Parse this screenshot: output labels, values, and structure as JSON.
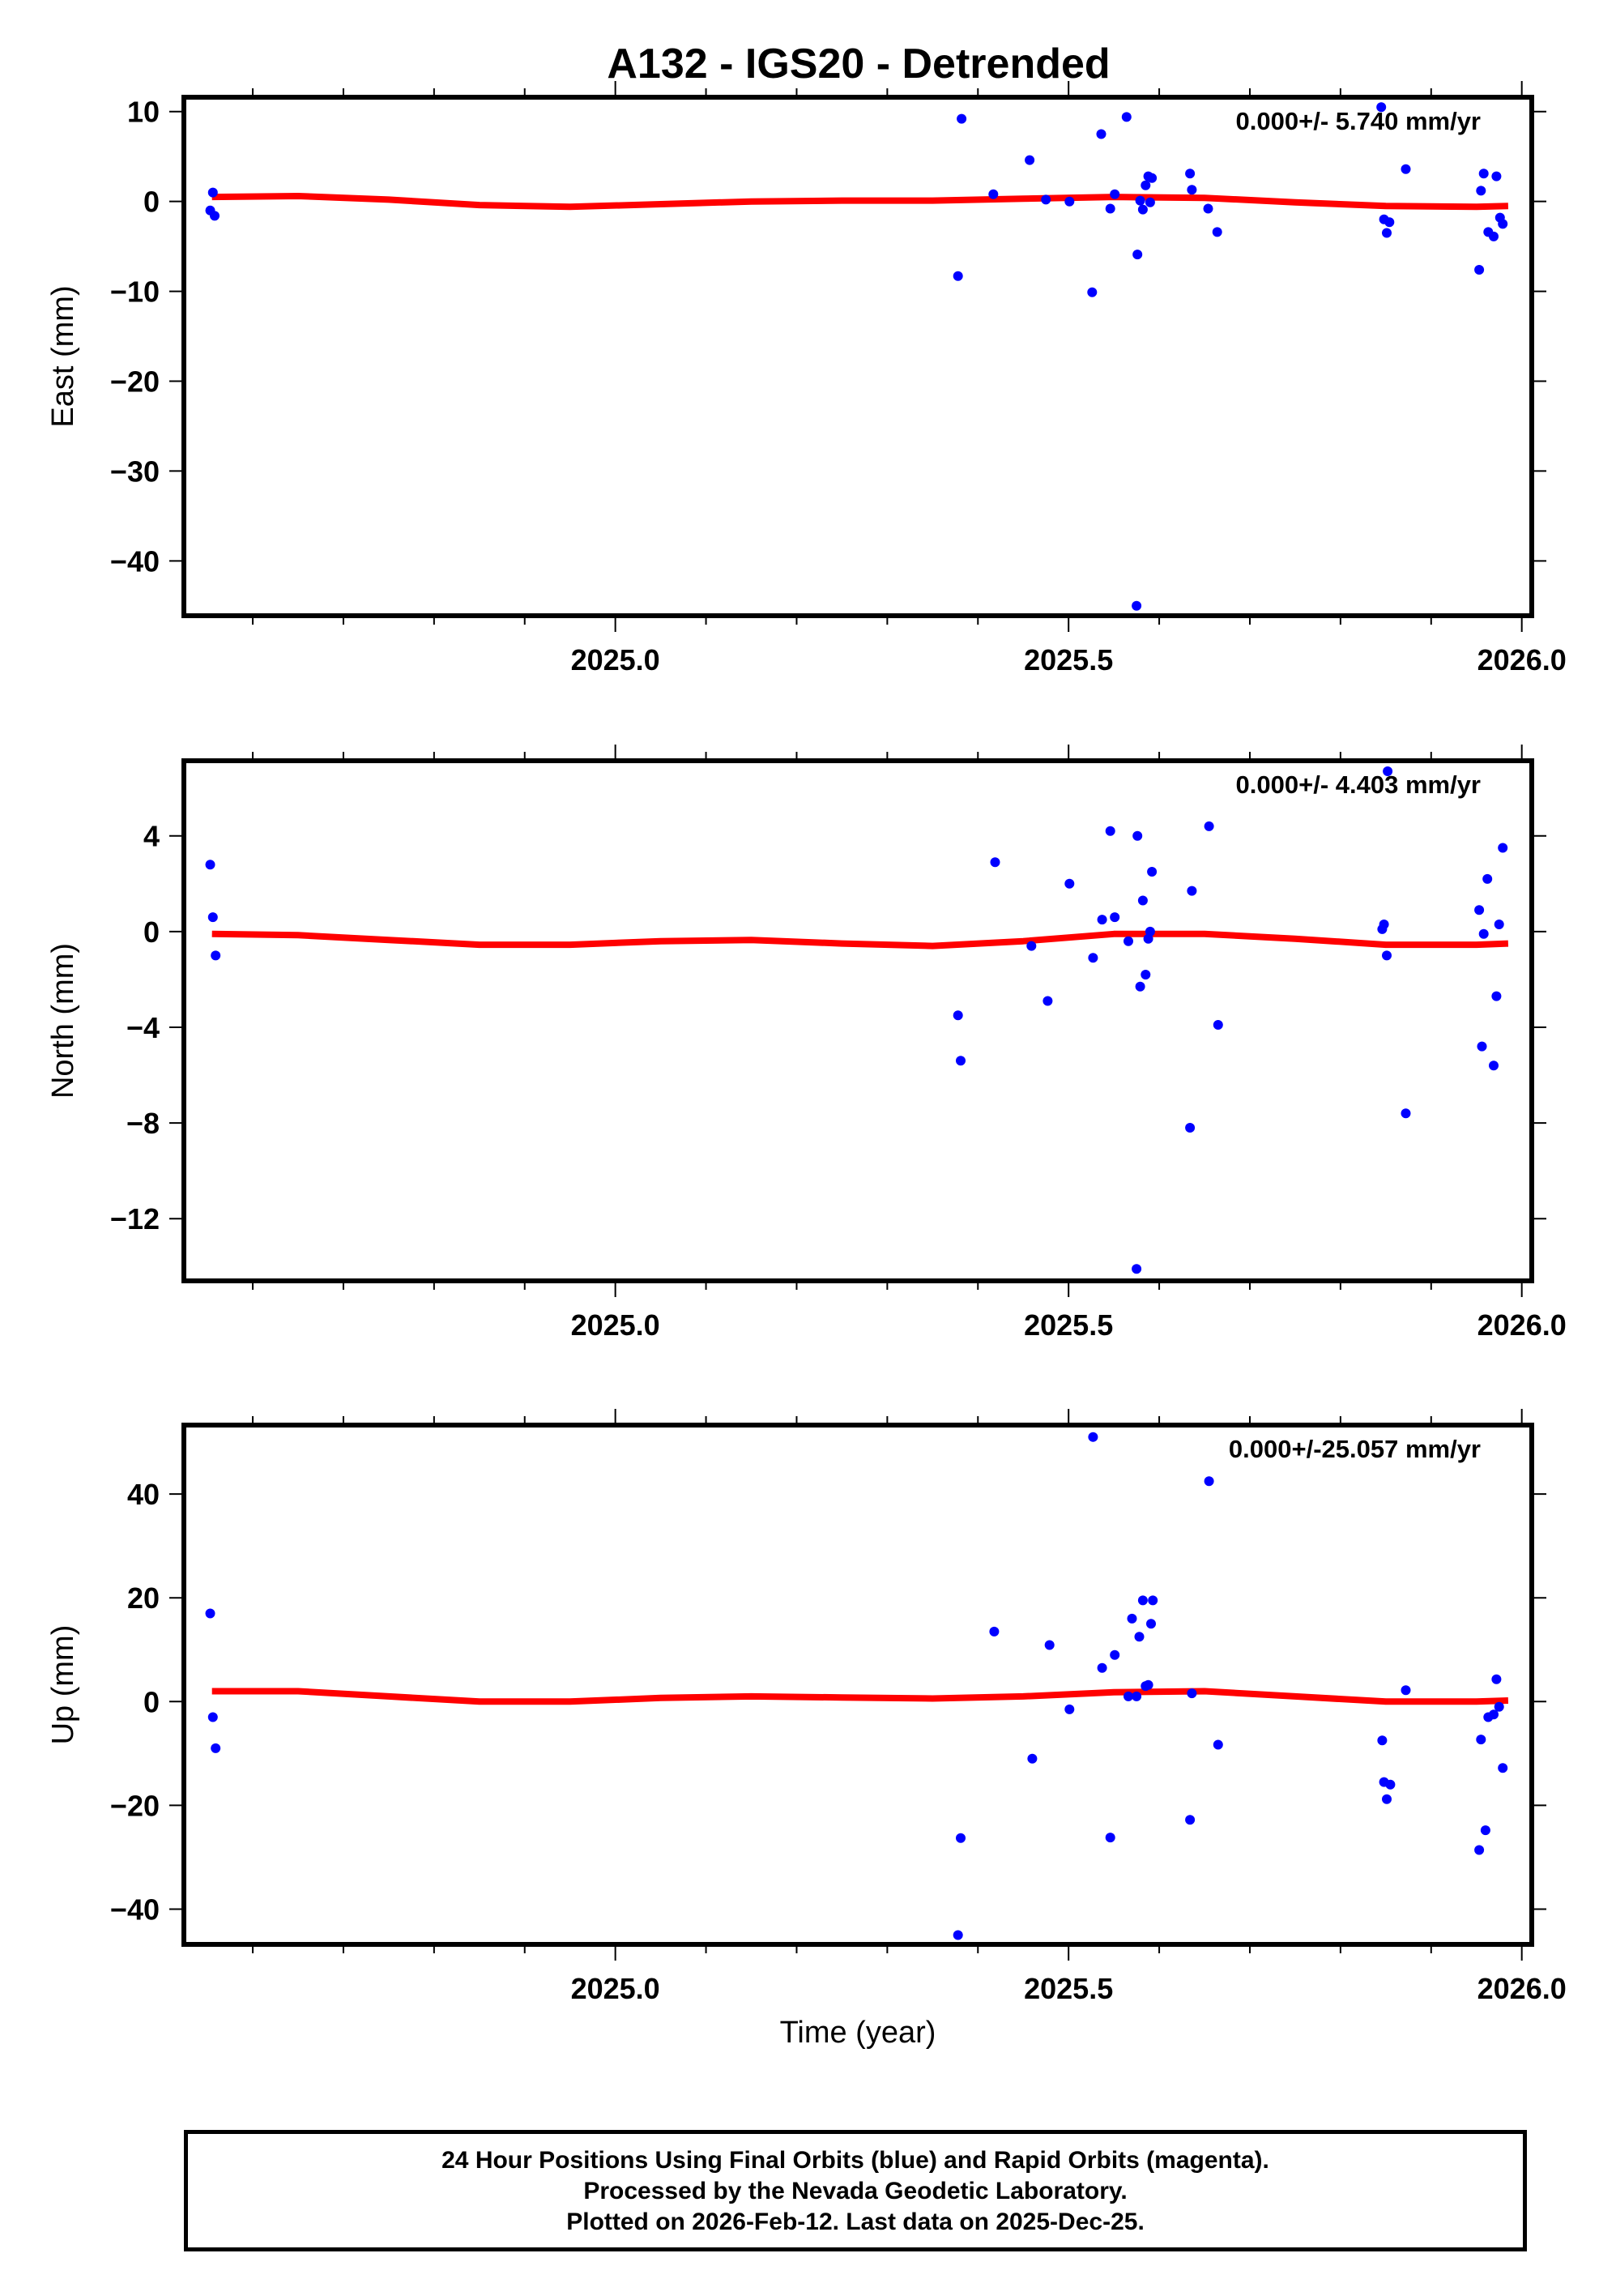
{
  "chart_data": {
    "type": "scatter",
    "title": "A132 - IGS20 - Detrended",
    "xlabel": "Time (year)",
    "xlim": [
      2024.524,
      2026.011
    ],
    "x_ticks_major": [
      2025.0,
      2025.5,
      2026.0
    ],
    "x_tick_labels": [
      "2025.0",
      "2025.5",
      "2026.0"
    ],
    "x_minor_step": 0.1,
    "grid": false,
    "colors": {
      "points": "#0000ff",
      "fit": "#ff0000",
      "frame": "#000000"
    },
    "panels": [
      {
        "name": "east",
        "ylabel": "East (mm)",
        "ylim": [
          -46.1,
          11.6
        ],
        "y_ticks": [
          10,
          0,
          -10,
          -20,
          -30,
          -40
        ],
        "y_tick_labels": [
          "10",
          "0",
          "−10",
          "−20",
          "−30",
          "−40"
        ],
        "velocity_label": "0.000+/- 5.740 mm/yr",
        "fit": {
          "x": [
            2024.555,
            2024.65,
            2024.75,
            2024.85,
            2024.95,
            2025.05,
            2025.15,
            2025.25,
            2025.35,
            2025.45,
            2025.55,
            2025.65,
            2025.75,
            2025.85,
            2025.95,
            2025.985
          ],
          "y": [
            0.5,
            0.6,
            0.2,
            -0.4,
            -0.6,
            -0.3,
            0.0,
            0.1,
            0.1,
            0.3,
            0.5,
            0.4,
            -0.1,
            -0.5,
            -0.6,
            -0.5
          ]
        },
        "points": [
          [
            2024.553,
            -1.0
          ],
          [
            2024.556,
            1.0
          ],
          [
            2024.558,
            -1.6
          ],
          [
            2025.378,
            -8.3
          ],
          [
            2025.382,
            9.2
          ],
          [
            2025.417,
            0.8
          ],
          [
            2025.457,
            4.6
          ],
          [
            2025.475,
            0.2
          ],
          [
            2025.501,
            0.0
          ],
          [
            2025.526,
            -10.1
          ],
          [
            2025.536,
            7.5
          ],
          [
            2025.546,
            -0.8
          ],
          [
            2025.551,
            0.8
          ],
          [
            2025.564,
            9.4
          ],
          [
            2025.576,
            -5.9
          ],
          [
            2025.579,
            0.1
          ],
          [
            2025.582,
            -0.9
          ],
          [
            2025.585,
            1.8
          ],
          [
            2025.588,
            2.8
          ],
          [
            2025.592,
            2.6
          ],
          [
            2025.575,
            -45.0
          ],
          [
            2025.59,
            -0.1
          ],
          [
            2025.634,
            3.1
          ],
          [
            2025.636,
            1.3
          ],
          [
            2025.654,
            -0.8
          ],
          [
            2025.664,
            -3.4
          ],
          [
            2025.845,
            10.5
          ],
          [
            2025.848,
            -2.0
          ],
          [
            2025.851,
            -3.5
          ],
          [
            2025.854,
            -2.3
          ],
          [
            2025.872,
            3.6
          ],
          [
            2025.953,
            -7.6
          ],
          [
            2025.955,
            1.2
          ],
          [
            2025.958,
            3.1
          ],
          [
            2025.963,
            -3.4
          ],
          [
            2025.969,
            -3.9
          ],
          [
            2025.972,
            2.8
          ],
          [
            2025.976,
            -1.8
          ],
          [
            2025.979,
            -2.5
          ]
        ]
      },
      {
        "name": "north",
        "ylabel": "North (mm)",
        "ylim": [
          -14.6,
          7.14
        ],
        "y_ticks": [
          4,
          0,
          -4,
          -8,
          -12
        ],
        "y_tick_labels": [
          "4",
          "0",
          "−4",
          "−8",
          "−12"
        ],
        "velocity_label": "0.000+/- 4.403 mm/yr",
        "fit": {
          "x": [
            2024.555,
            2024.65,
            2024.75,
            2024.85,
            2024.95,
            2025.05,
            2025.15,
            2025.25,
            2025.35,
            2025.45,
            2025.55,
            2025.65,
            2025.75,
            2025.85,
            2025.95,
            2025.985
          ],
          "y": [
            -0.1,
            -0.15,
            -0.35,
            -0.55,
            -0.55,
            -0.4,
            -0.35,
            -0.5,
            -0.6,
            -0.4,
            -0.1,
            -0.1,
            -0.3,
            -0.55,
            -0.55,
            -0.5
          ]
        },
        "points": [
          [
            2024.553,
            2.8
          ],
          [
            2024.556,
            0.6
          ],
          [
            2024.559,
            -1.0
          ],
          [
            2025.378,
            -3.5
          ],
          [
            2025.381,
            -5.4
          ],
          [
            2025.419,
            2.9
          ],
          [
            2025.459,
            -0.6
          ],
          [
            2025.477,
            -2.9
          ],
          [
            2025.501,
            2.0
          ],
          [
            2025.527,
            -1.1
          ],
          [
            2025.537,
            0.5
          ],
          [
            2025.546,
            4.2
          ],
          [
            2025.551,
            0.6
          ],
          [
            2025.566,
            -0.4
          ],
          [
            2025.576,
            4.0
          ],
          [
            2025.579,
            -2.3
          ],
          [
            2025.582,
            1.3
          ],
          [
            2025.585,
            -1.8
          ],
          [
            2025.588,
            -0.3
          ],
          [
            2025.59,
            0.0
          ],
          [
            2025.592,
            2.5
          ],
          [
            2025.575,
            -14.1
          ],
          [
            2025.634,
            -8.2
          ],
          [
            2025.636,
            1.7
          ],
          [
            2025.655,
            4.4
          ],
          [
            2025.665,
            -3.9
          ],
          [
            2025.846,
            0.1
          ],
          [
            2025.848,
            0.3
          ],
          [
            2025.851,
            -1.0
          ],
          [
            2025.852,
            6.7
          ],
          [
            2025.872,
            -7.6
          ],
          [
            2025.953,
            0.9
          ],
          [
            2025.956,
            -4.8
          ],
          [
            2025.958,
            -0.1
          ],
          [
            2025.962,
            2.2
          ],
          [
            2025.969,
            -5.6
          ],
          [
            2025.972,
            -2.7
          ],
          [
            2025.975,
            0.3
          ],
          [
            2025.979,
            3.5
          ]
        ]
      },
      {
        "name": "up",
        "ylabel": "Up (mm)",
        "ylim": [
          -46.8,
          53.3
        ],
        "y_ticks": [
          40,
          20,
          0,
          -20,
          -40
        ],
        "y_tick_labels": [
          "40",
          "20",
          "0",
          "−20",
          "−40"
        ],
        "velocity_label": "0.000+/-25.057 mm/yr",
        "fit": {
          "x": [
            2024.555,
            2024.65,
            2024.75,
            2024.85,
            2024.95,
            2025.05,
            2025.15,
            2025.25,
            2025.35,
            2025.45,
            2025.55,
            2025.65,
            2025.75,
            2025.85,
            2025.95,
            2025.985
          ],
          "y": [
            2.0,
            2.0,
            1.0,
            0.0,
            0.0,
            0.7,
            1.0,
            0.8,
            0.6,
            1.0,
            1.8,
            2.0,
            1.0,
            0.0,
            0.0,
            0.2
          ]
        },
        "points": [
          [
            2024.553,
            17.0
          ],
          [
            2024.556,
            -3.0
          ],
          [
            2024.559,
            -9.0
          ],
          [
            2025.378,
            -45.0
          ],
          [
            2025.381,
            -26.3
          ],
          [
            2025.418,
            13.5
          ],
          [
            2025.46,
            -11.0
          ],
          [
            2025.479,
            10.9
          ],
          [
            2025.501,
            -1.5
          ],
          [
            2025.527,
            51.0
          ],
          [
            2025.537,
            6.5
          ],
          [
            2025.546,
            -26.2
          ],
          [
            2025.551,
            9.0
          ],
          [
            2025.566,
            1.0
          ],
          [
            2025.57,
            16.0
          ],
          [
            2025.575,
            1.0
          ],
          [
            2025.578,
            12.5
          ],
          [
            2025.582,
            19.5
          ],
          [
            2025.585,
            3.0
          ],
          [
            2025.588,
            3.2
          ],
          [
            2025.591,
            15.0
          ],
          [
            2025.593,
            19.5
          ],
          [
            2025.634,
            -22.8
          ],
          [
            2025.636,
            1.6
          ],
          [
            2025.655,
            42.5
          ],
          [
            2025.665,
            -8.3
          ],
          [
            2025.846,
            -7.5
          ],
          [
            2025.848,
            -15.5
          ],
          [
            2025.851,
            -18.8
          ],
          [
            2025.855,
            -16.0
          ],
          [
            2025.872,
            2.2
          ],
          [
            2025.953,
            -28.6
          ],
          [
            2025.955,
            -7.3
          ],
          [
            2025.96,
            -24.8
          ],
          [
            2025.963,
            -3.0
          ],
          [
            2025.969,
            -2.5
          ],
          [
            2025.972,
            4.3
          ],
          [
            2025.975,
            -1.0
          ],
          [
            2025.979,
            -12.8
          ]
        ]
      }
    ]
  },
  "layout_text": {
    "title": "A132 - IGS20 - Detrended",
    "xlabel": "Time (year)"
  },
  "footer": {
    "line1": "24 Hour Positions Using Final Orbits (blue) and Rapid Orbits (magenta).",
    "line2": "Processed by the Nevada Geodetic Laboratory.",
    "line3": "Plotted on 2026-Feb-12. Last data on 2025-Dec-25."
  }
}
